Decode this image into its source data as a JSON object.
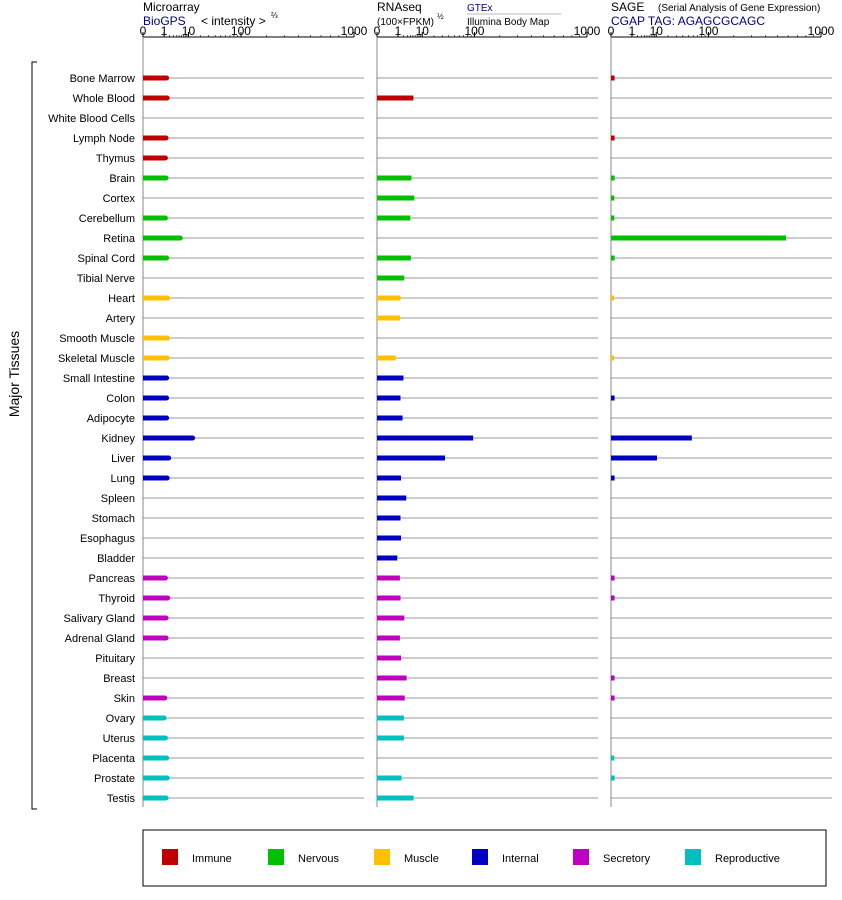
{
  "chart_data": {
    "type": "bar",
    "y_axis_group_label": "Major Tissues",
    "x_scale": "root",
    "x_ticks": [
      0,
      1,
      10,
      100,
      1000
    ],
    "tissues": [
      "Bone Marrow",
      "Whole Blood",
      "White Blood Cells",
      "Lymph Node",
      "Thymus",
      "Brain",
      "Cortex",
      "Cerebellum",
      "Retina",
      "Spinal Cord",
      "Tibial Nerve",
      "Heart",
      "Artery",
      "Smooth Muscle",
      "Skeletal Muscle",
      "Small Intestine",
      "Colon",
      "Adipocyte",
      "Kidney",
      "Liver",
      "Lung",
      "Spleen",
      "Stomach",
      "Esophagus",
      "Bladder",
      "Pancreas",
      "Thyroid",
      "Salivary Gland",
      "Adrenal Gland",
      "Pituitary",
      "Breast",
      "Skin",
      "Ovary",
      "Uterus",
      "Placenta",
      "Prostate",
      "Testis"
    ],
    "tissue_categories": [
      "Immune",
      "Immune",
      "Immune",
      "Immune",
      "Immune",
      "Nervous",
      "Nervous",
      "Nervous",
      "Nervous",
      "Nervous",
      "Nervous",
      "Muscle",
      "Muscle",
      "Muscle",
      "Muscle",
      "Internal",
      "Internal",
      "Internal",
      "Internal",
      "Internal",
      "Internal",
      "Internal",
      "Internal",
      "Internal",
      "Internal",
      "Secretory",
      "Secretory",
      "Secretory",
      "Secretory",
      "Secretory",
      "Secretory",
      "Secretory",
      "Reproductive",
      "Reproductive",
      "Reproductive",
      "Reproductive",
      "Reproductive"
    ],
    "legend": [
      {
        "name": "Immune",
        "color": "#c00000"
      },
      {
        "name": "Nervous",
        "color": "#00c000"
      },
      {
        "name": "Muscle",
        "color": "#ffc000"
      },
      {
        "name": "Internal",
        "color": "#0000c0"
      },
      {
        "name": "Secretory",
        "color": "#c000c0"
      },
      {
        "name": "Reproductive",
        "color": "#00c0c0"
      }
    ],
    "panels": [
      {
        "id": "microarray",
        "title": "Microarray",
        "source": "BioGPS",
        "unit_label": "< intensity >",
        "unit_superscript": "⅔",
        "values": [
          1.4,
          1.5,
          null,
          1.3,
          1.2,
          1.3,
          null,
          1.2,
          5.5,
          1.4,
          null,
          1.6,
          null,
          1.6,
          1.5,
          1.4,
          1.4,
          1.4,
          13,
          1.8,
          1.5,
          null,
          null,
          null,
          null,
          1.2,
          1.6,
          1.3,
          1.3,
          null,
          null,
          1.1,
          1.0,
          1.2,
          1.4,
          1.5,
          1.3
        ]
      },
      {
        "id": "rnaseq",
        "title": "RNAseq",
        "source_top": "GTEx",
        "source_bottom": "Illumina Body Map",
        "unit_label": "(100×FPKM)",
        "unit_superscript": "½",
        "values": [
          null,
          5.2,
          null,
          null,
          null,
          4.4,
          5.6,
          4.0,
          null,
          4.2,
          2.2,
          1.4,
          1.3,
          null,
          0.7,
          2.0,
          1.4,
          1.8,
          96,
          34,
          1.5,
          2.7,
          1.4,
          1.5,
          0.9,
          1.3,
          1.4,
          2.2,
          1.3,
          1.5,
          2.8,
          2.3,
          2.1,
          2.1,
          null,
          1.6,
          5.3
        ]
      },
      {
        "id": "sage",
        "title": "SAGE",
        "subtitle": "(Serial Analysis of Gene Expression)",
        "tag_label": "CGAP TAG: AGAGCGCAGC",
        "values": [
          0.005,
          null,
          null,
          0.005,
          null,
          0.005,
          0.004,
          0.004,
          580,
          0.005,
          null,
          0.003,
          null,
          null,
          0.003,
          null,
          0.005,
          null,
          57,
          10.5,
          0.005,
          null,
          null,
          null,
          null,
          0.005,
          0.005,
          null,
          null,
          null,
          0.005,
          0.005,
          null,
          null,
          0.004,
          0.005,
          null
        ]
      }
    ]
  }
}
